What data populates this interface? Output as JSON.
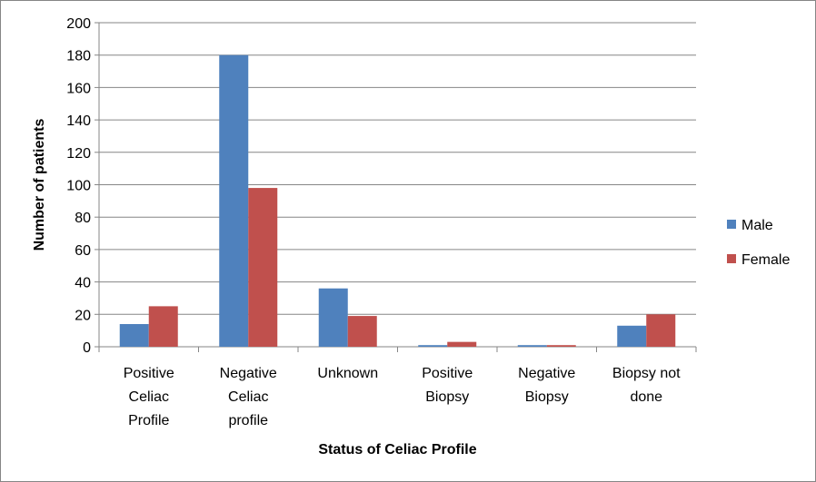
{
  "chart_data": {
    "type": "bar",
    "title": "",
    "xlabel": "Status of Celiac Profile",
    "ylabel": "Number of patients",
    "ylim": [
      0,
      200
    ],
    "yticks": [
      0,
      20,
      40,
      60,
      80,
      100,
      120,
      140,
      160,
      180,
      200
    ],
    "grid": true,
    "legend_position": "right",
    "categories": [
      [
        "Positive",
        "Celiac",
        "Profile"
      ],
      [
        "Negative",
        "Celiac",
        "profile"
      ],
      [
        "Unknown"
      ],
      [
        "Positive",
        "Biopsy"
      ],
      [
        "Negative",
        "Biopsy"
      ],
      [
        "Biopsy not",
        "done"
      ]
    ],
    "series": [
      {
        "name": "Male",
        "color": "#4F81BD",
        "values": [
          14,
          180,
          36,
          1,
          1,
          13
        ]
      },
      {
        "name": "Female",
        "color": "#C0504D",
        "values": [
          25,
          98,
          19,
          3,
          1,
          20
        ]
      }
    ]
  }
}
